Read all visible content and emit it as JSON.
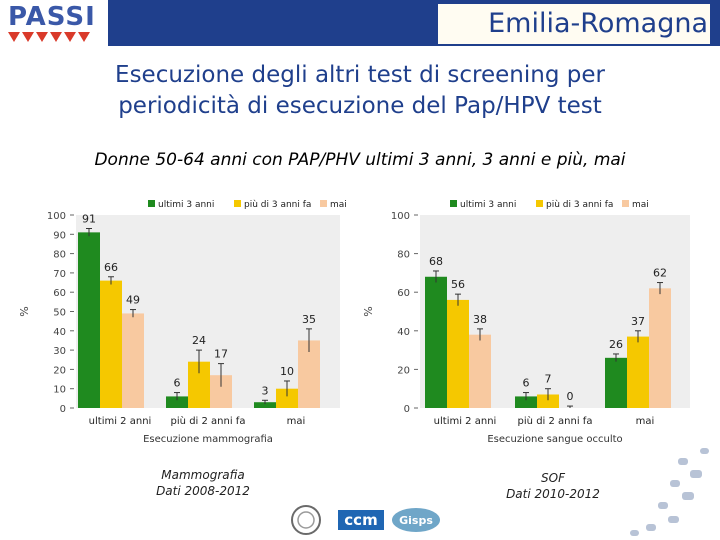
{
  "header": {
    "logo_text": "PASSI",
    "region": "Emilia-Romagna",
    "title_line1": "Esecuzione degli altri test di screening per",
    "title_line2": "periodicità di esecuzione del Pap/HPV test",
    "subtitle": "Donne 50-64 anni con PAP/PHV ultimi 3 anni, 3 anni e più, mai"
  },
  "colors": {
    "green": "#1f8a1f",
    "yellow": "#f5c800",
    "peach": "#f8c9a0",
    "brand_blue": "#1f3f8c"
  },
  "chart_data": [
    {
      "type": "bar",
      "ylabel": "%",
      "xlabel": "Esecuzione mammografia",
      "ylim": [
        0,
        100
      ],
      "yticks": [
        0,
        10,
        20,
        30,
        40,
        50,
        60,
        70,
        80,
        90,
        100
      ],
      "categories": [
        "ultimi 2 anni",
        "più di 2 anni fa",
        "mai"
      ],
      "legend_position": "top",
      "series": [
        {
          "name": "ultimi 3 anni",
          "color": "#1f8a1f",
          "values": [
            91,
            6,
            3
          ],
          "err": [
            2,
            2,
            1
          ]
        },
        {
          "name": "più di 3 anni fa",
          "color": "#f5c800",
          "values": [
            66,
            24,
            10
          ],
          "err": [
            2,
            6,
            4
          ]
        },
        {
          "name": "mai",
          "color": "#f8c9a0",
          "values": [
            49,
            17,
            35
          ],
          "err": [
            2,
            6,
            6
          ]
        }
      ]
    },
    {
      "type": "bar",
      "ylabel": "%",
      "xlabel": "Esecuzione sangue occulto",
      "ylim": [
        0,
        100
      ],
      "yticks": [
        0,
        20,
        40,
        60,
        80,
        100
      ],
      "categories": [
        "ultimi 2 anni",
        "più di 2 anni fa",
        "mai"
      ],
      "legend_position": "top",
      "series": [
        {
          "name": "ultimi 3 anni",
          "color": "#1f8a1f",
          "values": [
            68,
            6,
            26
          ],
          "err": [
            3,
            2,
            2
          ]
        },
        {
          "name": "più di 3 anni fa",
          "color": "#f5c800",
          "values": [
            56,
            7,
            37
          ],
          "err": [
            3,
            3,
            3
          ]
        },
        {
          "name": "mai",
          "color": "#f8c9a0",
          "values": [
            38,
            0,
            62
          ],
          "err": [
            3,
            1,
            3
          ]
        }
      ]
    }
  ],
  "captions": [
    {
      "line1": "Mammografia",
      "line2": "Dati 2008-2012"
    },
    {
      "line1": "SOF",
      "line2": "Dati 2010-2012"
    }
  ],
  "footer": {
    "logo2": "ccm",
    "logo3": "Gisps"
  }
}
